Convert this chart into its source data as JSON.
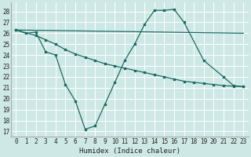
{
  "xlabel": "Humidex (Indice chaleur)",
  "bg_color": "#cee9e5",
  "grid_color": "#ffffff",
  "line_color": "#1a6b5f",
  "xlim": [
    -0.5,
    23.5
  ],
  "ylim": [
    16.5,
    28.8
  ],
  "xticks": [
    0,
    1,
    2,
    3,
    4,
    5,
    6,
    7,
    8,
    9,
    10,
    11,
    12,
    13,
    14,
    15,
    16,
    17,
    18,
    19,
    20,
    21,
    22,
    23
  ],
  "yticks": [
    17,
    18,
    19,
    20,
    21,
    22,
    23,
    24,
    25,
    26,
    27,
    28
  ],
  "line1_x": [
    0,
    1,
    2,
    3,
    4,
    5,
    6,
    7,
    8,
    9,
    10,
    11,
    12,
    13,
    14,
    15,
    16,
    17,
    19,
    21,
    22,
    23
  ],
  "line1_y": [
    26.3,
    26.0,
    26.1,
    24.3,
    24.0,
    21.3,
    19.8,
    17.2,
    17.5,
    19.5,
    21.5,
    23.5,
    25.0,
    26.8,
    28.1,
    28.1,
    28.2,
    27.0,
    23.5,
    22.0,
    21.2,
    21.1
  ],
  "line2_x": [
    0,
    23
  ],
  "line2_y": [
    26.3,
    26.0
  ],
  "line3_x": [
    0,
    2,
    3,
    4,
    5,
    6,
    7,
    8,
    9,
    10,
    11,
    12,
    13,
    14,
    15,
    16,
    17,
    18,
    19,
    20,
    21,
    22,
    23
  ],
  "line3_y": [
    26.3,
    25.8,
    25.4,
    25.0,
    24.5,
    24.1,
    23.8,
    23.5,
    23.2,
    23.0,
    22.8,
    22.6,
    22.4,
    22.2,
    22.0,
    21.8,
    21.6,
    21.5,
    21.4,
    21.3,
    21.2,
    21.15,
    21.1
  ]
}
